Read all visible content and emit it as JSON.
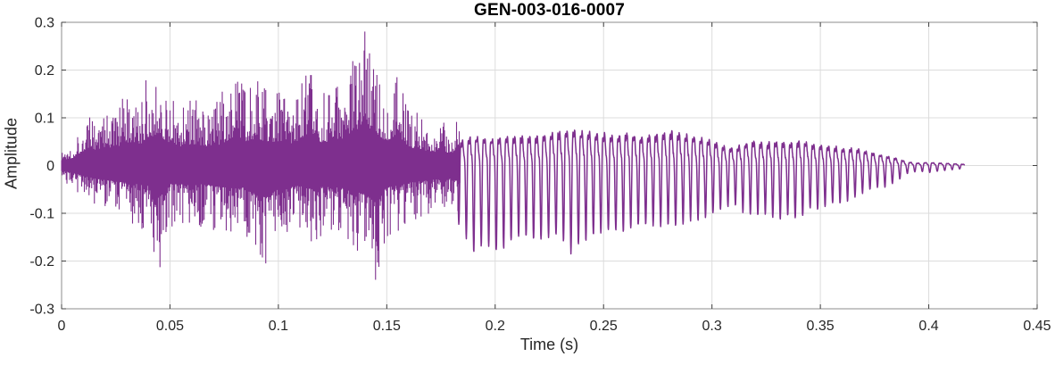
{
  "chart_data": {
    "type": "line",
    "title": "GEN-003-016-0007",
    "xlabel": "Time (s)",
    "ylabel": "Amplitude",
    "xlim": [
      0,
      0.45
    ],
    "ylim": [
      -0.3,
      0.3
    ],
    "xticks": {
      "values": [
        0,
        0.05,
        0.1,
        0.15,
        0.2,
        0.25,
        0.3,
        0.35,
        0.4,
        0.45
      ],
      "labels": [
        "0",
        "0.05",
        "0.1",
        "0.15",
        "0.2",
        "0.25",
        "0.3",
        "0.35",
        "0.4",
        "0.45"
      ]
    },
    "yticks": {
      "values": [
        -0.3,
        -0.2,
        -0.1,
        0,
        0.1,
        0.2,
        0.3
      ],
      "labels": [
        "-0.3",
        "-0.2",
        "-0.1",
        "0",
        "0.1",
        "0.2",
        "0.3"
      ]
    },
    "grid": true,
    "legend": "none",
    "line_color": "#7E2F8E",
    "box_color": "#8c8c8c",
    "tick_mark_color": "#404040",
    "tick_label_color": "#262626",
    "grid_color": "#dcdcdc",
    "title_color": "#000000",
    "background": "#ffffff",
    "signal": {
      "description": "speech audio waveform: dense noisy burst 0-0.184s (peak +0.29 / -0.26 near t=0.142s), quasi-periodic ~290Hz voiced segment 0.184-0.39s (amplitude ~0.13), decaying ripple tail ending at t=0.4165s",
      "t_end": 0.4165,
      "noisy_until": 0.184,
      "periodic_f0_hz": 290,
      "noise_seed": 1337,
      "envelope": {
        "t0": 0,
        "dt": 0.005,
        "max": [
          0.035,
          0.05,
          0.1,
          0.11,
          0.12,
          0.13,
          0.15,
          0.13,
          0.2,
          0.21,
          0.15,
          0.13,
          0.15,
          0.14,
          0.13,
          0.16,
          0.2,
          0.17,
          0.19,
          0.16,
          0.17,
          0.15,
          0.18,
          0.2,
          0.16,
          0.17,
          0.19,
          0.24,
          0.29,
          0.22,
          0.17,
          0.22,
          0.13,
          0.11,
          0.1,
          0.09,
          0.09,
          0.1,
          0.12,
          0.11,
          0.11,
          0.12,
          0.12,
          0.12,
          0.12,
          0.13,
          0.14,
          0.14,
          0.14,
          0.13,
          0.13,
          0.12,
          0.13,
          0.12,
          0.12,
          0.13,
          0.14,
          0.13,
          0.12,
          0.11,
          0.1,
          0.08,
          0.07,
          0.09,
          0.1,
          0.09,
          0.1,
          0.09,
          0.1,
          0.09,
          0.08,
          0.08,
          0.07,
          0.07,
          0.06,
          0.05,
          0.04,
          0.03,
          0.015,
          0.01,
          0.013,
          0.01,
          0.008,
          0.006,
          0.003
        ],
        "min": [
          -0.035,
          -0.05,
          -0.07,
          -0.09,
          -0.1,
          -0.11,
          -0.12,
          -0.13,
          -0.14,
          -0.22,
          -0.13,
          -0.13,
          -0.14,
          -0.13,
          -0.14,
          -0.15,
          -0.16,
          -0.15,
          -0.21,
          -0.22,
          -0.16,
          -0.15,
          -0.14,
          -0.16,
          -0.15,
          -0.14,
          -0.16,
          -0.18,
          -0.2,
          -0.26,
          -0.15,
          -0.14,
          -0.12,
          -0.11,
          -0.1,
          -0.09,
          -0.09,
          -0.12,
          -0.16,
          -0.14,
          -0.16,
          -0.15,
          -0.13,
          -0.13,
          -0.14,
          -0.13,
          -0.13,
          -0.16,
          -0.14,
          -0.13,
          -0.12,
          -0.12,
          -0.12,
          -0.11,
          -0.11,
          -0.11,
          -0.11,
          -0.11,
          -0.1,
          -0.1,
          -0.09,
          -0.08,
          -0.07,
          -0.09,
          -0.09,
          -0.09,
          -0.1,
          -0.09,
          -0.1,
          -0.08,
          -0.08,
          -0.07,
          -0.07,
          -0.06,
          -0.05,
          -0.04,
          -0.04,
          -0.03,
          -0.015,
          -0.01,
          -0.013,
          -0.01,
          -0.008,
          -0.006,
          -0.003
        ]
      }
    }
  }
}
